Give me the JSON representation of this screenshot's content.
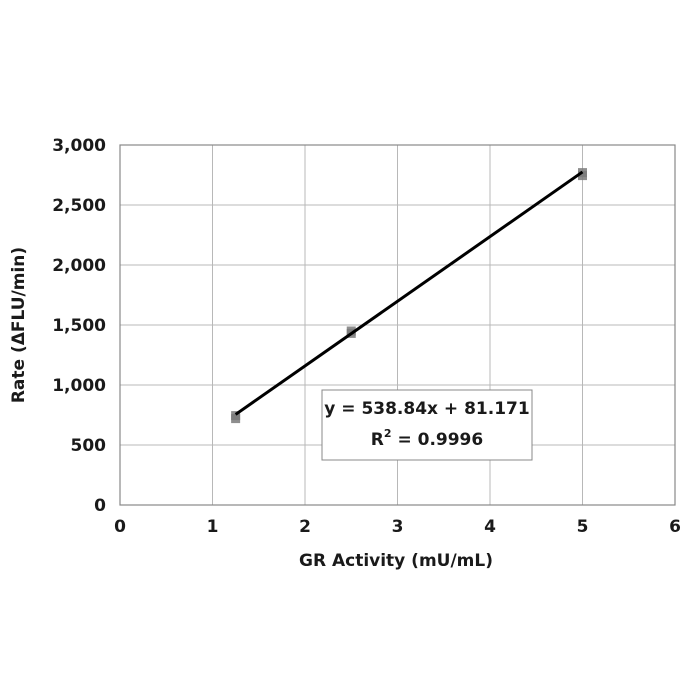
{
  "chart_data": {
    "type": "scatter",
    "title": "",
    "xlabel": "GR Activity (mU/mL)",
    "ylabel": "Rate (ΔFLU/min)",
    "xlim": [
      0,
      6
    ],
    "ylim": [
      0,
      3000
    ],
    "x_ticks": [
      0,
      1,
      2,
      3,
      4,
      5,
      6
    ],
    "x_tick_labels": [
      "0",
      "1",
      "2",
      "3",
      "4",
      "5",
      "6"
    ],
    "y_ticks": [
      0,
      500,
      1000,
      1500,
      2000,
      2500,
      3000
    ],
    "y_tick_labels": [
      "0",
      "500",
      "1,000",
      "1,500",
      "2,000",
      "2,500",
      "3,000"
    ],
    "grid": true,
    "series": [
      {
        "points": [
          {
            "x": 1.25,
            "y": 720
          },
          {
            "x": 1.25,
            "y": 745
          },
          {
            "x": 2.5,
            "y": 1430
          },
          {
            "x": 2.5,
            "y": 1450
          },
          {
            "x": 5,
            "y": 2745
          },
          {
            "x": 5,
            "y": 2770
          }
        ],
        "marker": "square",
        "color": "#7a7a7a"
      }
    ],
    "trendline": {
      "slope": 538.84,
      "intercept": 81.171,
      "x_range": [
        1.25,
        5
      ],
      "color": "#000000"
    },
    "annotation": {
      "equation": "y = 538.84x + 81.171",
      "r_squared_prefix": "R",
      "r_squared_sup": "2",
      "r_squared_value": " = 0.9996"
    }
  }
}
